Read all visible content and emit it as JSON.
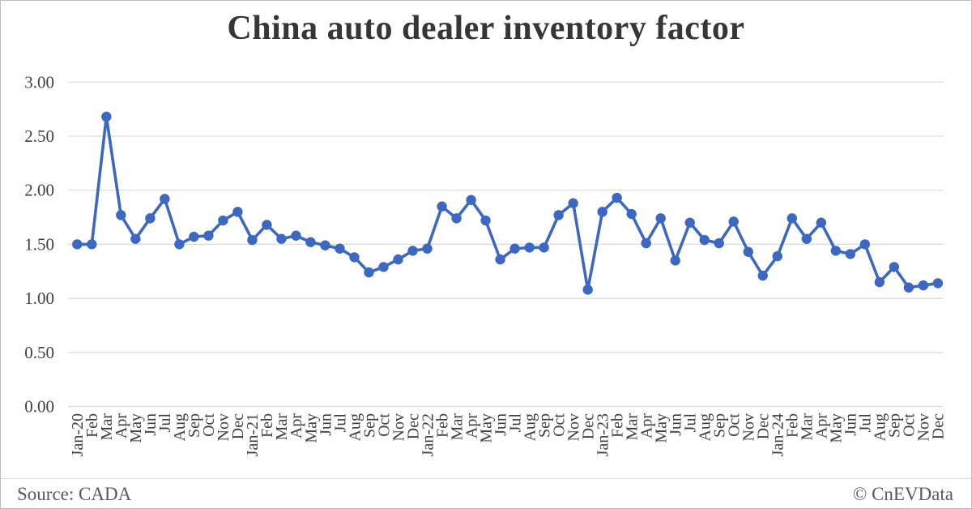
{
  "title": "China auto dealer inventory factor",
  "footer": {
    "source": "Source: CADA",
    "credit": "© CnEVData"
  },
  "colors": {
    "line": "#3D68C1",
    "marker": "#3D68C1",
    "grid": "#D9D9D9",
    "axis_text": "#3F3F3F",
    "title_text": "#363636",
    "footer_text": "#595959",
    "border": "#BFBFBF"
  },
  "chart_data": {
    "type": "line",
    "title": "China auto dealer inventory factor",
    "series_name": "China auto dealer inventory factor",
    "xlabel": "",
    "ylabel": "",
    "ylim": [
      0,
      3
    ],
    "ytick_step": 0.5,
    "ytick_labels": [
      "0.00",
      "0.50",
      "1.00",
      "1.50",
      "2.00",
      "2.50",
      "3.00"
    ],
    "grid": true,
    "legend": false,
    "marker": "circle",
    "x_labels": [
      "Jan-20",
      "Feb",
      "Mar",
      "Apr",
      "May",
      "Jun",
      "Jul",
      "Aug",
      "Sep",
      "Oct",
      "Nov",
      "Dec",
      "Jan-21",
      "Feb",
      "Mar",
      "Apr",
      "May",
      "Jun",
      "Jul",
      "Aug",
      "Sep",
      "Oct",
      "Nov",
      "Dec",
      "Jan-22",
      "Feb",
      "Mar",
      "Apr",
      "May",
      "Jun",
      "Jul",
      "Aug",
      "Sep",
      "Oct",
      "Nov",
      "Dec",
      "Jan-23",
      "Feb",
      "Mar",
      "Apr",
      "May",
      "Jun",
      "Jul",
      "Aug",
      "Sep",
      "Oct",
      "Nov",
      "Dec",
      "Jan-24",
      "Feb",
      "Mar",
      "Apr",
      "May",
      "Jun",
      "Jul",
      "Aug",
      "Sep",
      "Oct",
      "Nov",
      "Dec"
    ],
    "values": [
      1.5,
      1.5,
      2.68,
      1.77,
      1.55,
      1.74,
      1.92,
      1.5,
      1.57,
      1.58,
      1.72,
      1.8,
      1.54,
      1.68,
      1.55,
      1.58,
      1.52,
      1.49,
      1.46,
      1.38,
      1.24,
      1.29,
      1.36,
      1.44,
      1.46,
      1.85,
      1.74,
      1.91,
      1.72,
      1.36,
      1.46,
      1.47,
      1.47,
      1.77,
      1.88,
      1.08,
      1.8,
      1.93,
      1.78,
      1.51,
      1.74,
      1.35,
      1.7,
      1.54,
      1.51,
      1.71,
      1.43,
      1.21,
      1.39,
      1.74,
      1.55,
      1.7,
      1.44,
      1.41,
      1.5,
      1.15,
      1.29,
      1.1,
      1.12,
      1.14
    ]
  }
}
